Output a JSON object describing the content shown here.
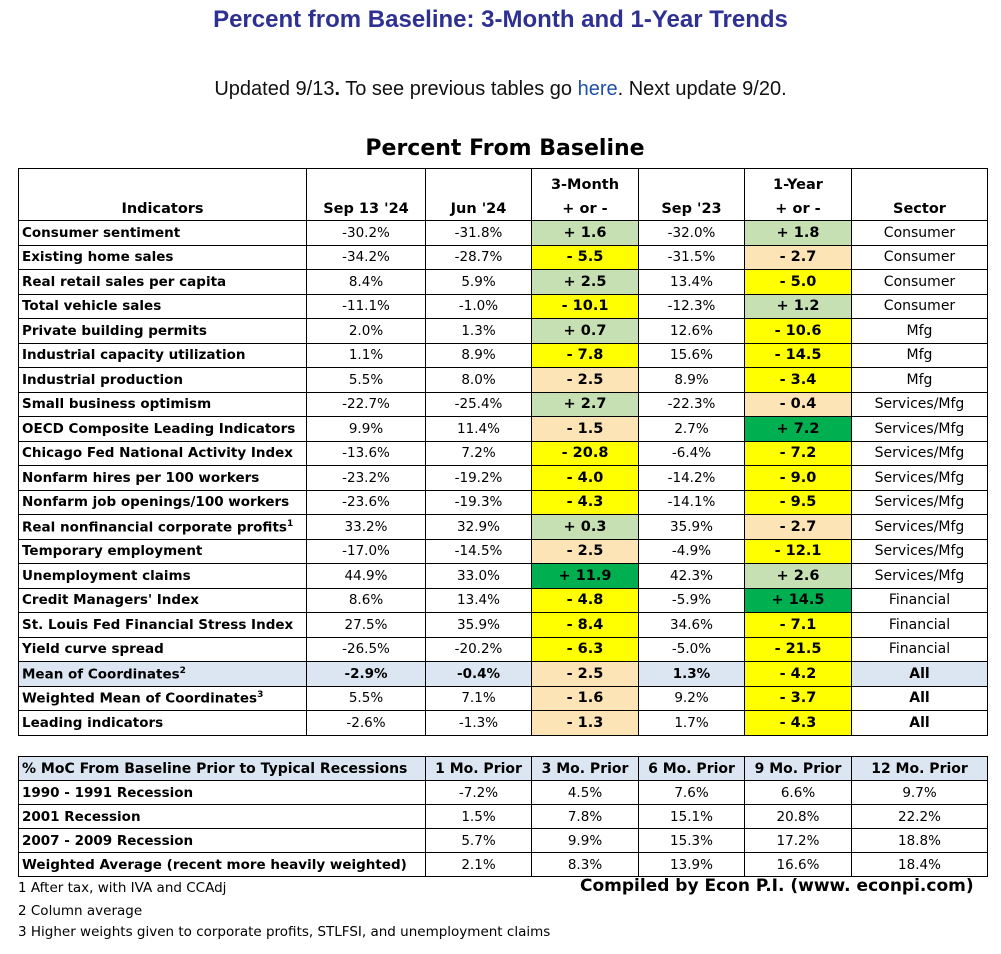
{
  "page": {
    "title": "Percent from Baseline: 3-Month and 1-Year Trends",
    "update_prefix": "Updated 9/13",
    "update_mid": "To see previous tables go",
    "update_link": "here",
    "update_suffix": ". Next update 9/20."
  },
  "table": {
    "title": "Percent From Baseline",
    "headers": {
      "indicators": "Indicators",
      "sep24": "Sep 13 '24",
      "jun24": "Jun '24",
      "m3_line1": "3-Month",
      "m3_line2": "+ or -",
      "sep23": "Sep '23",
      "y1_line1": "1-Year",
      "y1_line2": "+ or -",
      "sector": "Sector"
    },
    "rows": [
      {
        "name": "Consumer sentiment",
        "sup": "",
        "sep24": "-30.2%",
        "jun24": "-31.8%",
        "m3": "+ 1.6",
        "m3_color": "lgreen",
        "sep23": "-32.0%",
        "y1": "+ 1.8",
        "y1_color": "lgreen",
        "sector": "Consumer"
      },
      {
        "name": "Existing home sales",
        "sup": "",
        "sep24": "-34.2%",
        "jun24": "-28.7%",
        "m3": "- 5.5",
        "m3_color": "yellow",
        "sep23": "-31.5%",
        "y1": "- 2.7",
        "y1_color": "peach",
        "sector": "Consumer"
      },
      {
        "name": "Real retail sales per capita",
        "sup": "",
        "sep24": "8.4%",
        "jun24": "5.9%",
        "m3": "+ 2.5",
        "m3_color": "lgreen",
        "sep23": "13.4%",
        "y1": "- 5.0",
        "y1_color": "yellow",
        "sector": "Consumer"
      },
      {
        "name": "Total vehicle sales",
        "sup": "",
        "sep24": "-11.1%",
        "jun24": "-1.0%",
        "m3": "- 10.1",
        "m3_color": "yellow",
        "sep23": "-12.3%",
        "y1": "+ 1.2",
        "y1_color": "lgreen",
        "sector": "Consumer"
      },
      {
        "name": "Private building permits",
        "sup": "",
        "sep24": "2.0%",
        "jun24": "1.3%",
        "m3": "+ 0.7",
        "m3_color": "lgreen",
        "sep23": "12.6%",
        "y1": "- 10.6",
        "y1_color": "yellow",
        "sector": "Mfg"
      },
      {
        "name": "Industrial capacity utilization",
        "sup": "",
        "sep24": "1.1%",
        "jun24": "8.9%",
        "m3": "- 7.8",
        "m3_color": "yellow",
        "sep23": "15.6%",
        "y1": "- 14.5",
        "y1_color": "yellow",
        "sector": "Mfg"
      },
      {
        "name": "Industrial production",
        "sup": "",
        "sep24": "5.5%",
        "jun24": "8.0%",
        "m3": "- 2.5",
        "m3_color": "peach",
        "sep23": "8.9%",
        "y1": "- 3.4",
        "y1_color": "yellow",
        "sector": "Mfg"
      },
      {
        "name": "Small business optimism",
        "sup": "",
        "sep24": "-22.7%",
        "jun24": "-25.4%",
        "m3": "+ 2.7",
        "m3_color": "lgreen",
        "sep23": "-22.3%",
        "y1": "- 0.4",
        "y1_color": "peach",
        "sector": "Services/Mfg"
      },
      {
        "name": "OECD Composite Leading Indicators",
        "sup": "",
        "sep24": "9.9%",
        "jun24": "11.4%",
        "m3": "- 1.5",
        "m3_color": "peach",
        "sep23": "2.7%",
        "y1": "+ 7.2",
        "y1_color": "dgreen",
        "sector": "Services/Mfg"
      },
      {
        "name": "Chicago Fed National Activity Index",
        "sup": "",
        "sep24": "-13.6%",
        "jun24": "7.2%",
        "m3": "- 20.8",
        "m3_color": "yellow",
        "sep23": "-6.4%",
        "y1": "- 7.2",
        "y1_color": "yellow",
        "sector": "Services/Mfg"
      },
      {
        "name": "Nonfarm hires per 100 workers",
        "sup": "",
        "sep24": "-23.2%",
        "jun24": "-19.2%",
        "m3": "- 4.0",
        "m3_color": "yellow",
        "sep23": "-14.2%",
        "y1": "- 9.0",
        "y1_color": "yellow",
        "sector": "Services/Mfg"
      },
      {
        "name": "Nonfarm job openings/100 workers",
        "sup": "",
        "sep24": "-23.6%",
        "jun24": "-19.3%",
        "m3": "- 4.3",
        "m3_color": "yellow",
        "sep23": "-14.1%",
        "y1": "- 9.5",
        "y1_color": "yellow",
        "sector": "Services/Mfg"
      },
      {
        "name": "Real nonfinancial corporate profits",
        "sup": "1",
        "sep24": "33.2%",
        "jun24": "32.9%",
        "m3": "+ 0.3",
        "m3_color": "lgreen",
        "sep23": "35.9%",
        "y1": "- 2.7",
        "y1_color": "peach",
        "sector": "Services/Mfg"
      },
      {
        "name": "Temporary employment",
        "sup": "",
        "sep24": "-17.0%",
        "jun24": "-14.5%",
        "m3": "- 2.5",
        "m3_color": "peach",
        "sep23": "-4.9%",
        "y1": "- 12.1",
        "y1_color": "yellow",
        "sector": "Services/Mfg"
      },
      {
        "name": "Unemployment claims",
        "sup": "",
        "sep24": "44.9%",
        "jun24": "33.0%",
        "m3": "+ 11.9",
        "m3_color": "dgreen",
        "sep23": "42.3%",
        "y1": "+ 2.6",
        "y1_color": "lgreen",
        "sector": "Services/Mfg"
      },
      {
        "name": "Credit Managers' Index",
        "sup": "",
        "sep24": "8.6%",
        "jun24": "13.4%",
        "m3": "- 4.8",
        "m3_color": "yellow",
        "sep23": "-5.9%",
        "y1": "+ 14.5",
        "y1_color": "dgreen",
        "sector": "Financial"
      },
      {
        "name": "St. Louis Fed Financial Stress Index",
        "sup": "",
        "sep24": "27.5%",
        "jun24": "35.9%",
        "m3": "- 8.4",
        "m3_color": "yellow",
        "sep23": "34.6%",
        "y1": "- 7.1",
        "y1_color": "yellow",
        "sector": "Financial"
      },
      {
        "name": "Yield curve spread",
        "sup": "",
        "sep24": "-26.5%",
        "jun24": "-20.2%",
        "m3": "- 6.3",
        "m3_color": "yellow",
        "sep23": "-5.0%",
        "y1": "- 21.5",
        "y1_color": "yellow",
        "sector": "Financial"
      }
    ],
    "summary": [
      {
        "name": "Mean of Coordinates",
        "sup": "2",
        "sep24": "-2.9%",
        "jun24": "-0.4%",
        "m3": "- 2.5",
        "m3_color": "peach",
        "sep23": "1.3%",
        "y1": "- 4.2",
        "y1_color": "yellow",
        "sector": "All"
      },
      {
        "name": "Weighted Mean of Coordinates",
        "sup": "3",
        "sep24": "5.5%",
        "jun24": "7.1%",
        "m3": "- 1.6",
        "m3_color": "peach",
        "sep23": "9.2%",
        "y1": "- 3.7",
        "y1_color": "yellow",
        "sector": "All"
      },
      {
        "name": "Leading indicators",
        "sup": "",
        "sep24": "-2.6%",
        "jun24": "-1.3%",
        "m3": "- 1.3",
        "m3_color": "peach",
        "sep23": "1.7%",
        "y1": "- 4.3",
        "y1_color": "yellow",
        "sector": "All"
      }
    ]
  },
  "recessions": {
    "headers": [
      "% MoC From Baseline Prior to  Typical Recessions",
      "1 Mo. Prior",
      "3 Mo. Prior",
      "6 Mo. Prior",
      "9 Mo. Prior",
      "12 Mo. Prior"
    ],
    "rows": [
      [
        "1990 - 1991 Recession",
        "-7.2%",
        "4.5%",
        "7.6%",
        "6.6%",
        "9.7%"
      ],
      [
        "2001 Recession",
        "1.5%",
        "7.8%",
        "15.1%",
        "20.8%",
        "22.2%"
      ],
      [
        "2007 - 2009 Recession",
        "5.7%",
        "9.9%",
        "15.3%",
        "17.2%",
        "18.8%"
      ],
      [
        "Weighted Average (recent more heavily weighted)",
        "2.1%",
        "8.3%",
        "13.9%",
        "16.6%",
        "18.4%"
      ]
    ]
  },
  "footnotes": {
    "compiled": "Compiled by Econ P.I. (www. econpi.com)",
    "fn1": "1 After tax, with IVA and CCAdj",
    "fn2": "2 Column average",
    "fn3": "3 Higher weights given to corporate profits, STLFSI, and unemployment claims"
  },
  "colors": {
    "title": "#2e3192",
    "link": "#1f4fa8",
    "yellow": "#ffff00",
    "lgreen": "#c6e0b4",
    "dgreen": "#00b050",
    "peach": "#fce4b6",
    "highlight_row": "#dce6f2"
  }
}
